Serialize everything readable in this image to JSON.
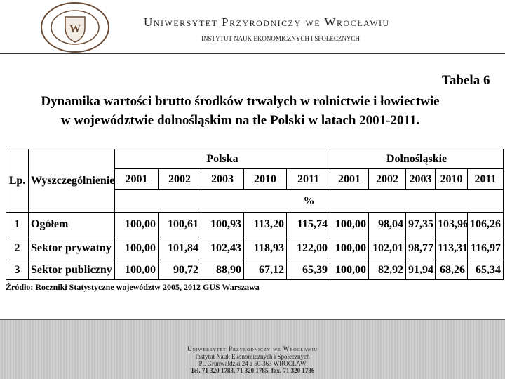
{
  "header": {
    "title": "Uniwersytet Przyrodniczy we Wrocławiu",
    "subtitle": "INSTYTUT NAUK EKONOMICZNYCH I SPOŁECZNYCH"
  },
  "table_label": "Tabela 6",
  "title_lines": [
    "Dynamika wartości brutto środków trwałych w rolnictwie i łowiectwie",
    "w województwie dolnośląskim na tle Polski w latach 2001-2011."
  ],
  "table": {
    "lp": "Lp.",
    "item": "Wyszczególnienie",
    "groups": [
      "Polska",
      "Dolnośląskie"
    ],
    "years": [
      "2001",
      "2002",
      "2003",
      "2010",
      "2011",
      "2001",
      "2002",
      "2003",
      "2010",
      "2011"
    ],
    "unit": "%",
    "rows": [
      [
        "1",
        "Ogółem",
        "100,00",
        "100,61",
        "100,93",
        "113,20",
        "115,74",
        "100,00",
        "98,04",
        "97,35",
        "103,96",
        "106,26"
      ],
      [
        "2",
        "Sektor prywatny",
        "100,00",
        "101,84",
        "102,43",
        "118,93",
        "122,00",
        "100,00",
        "102,01",
        "98,77",
        "113,31",
        "116,97"
      ],
      [
        "3",
        "Sektor publiczny",
        "100,00",
        "90,72",
        "88,90",
        "67,12",
        "65,39",
        "100,00",
        "82,92",
        "91,94",
        "68,26",
        "65,34"
      ]
    ]
  },
  "source": "Źródło: Roczniki Statystyczne województw 2005, 2012 GUS Warszawa",
  "footer": {
    "lines": [
      "Uniwersytet Przyrodniczy we Wrocławiu",
      "Instytut Nauk Ekonomicznych i Społecznych",
      "Pl. Grunwaldzki 24 a 50-363 WROCŁAW",
      "Tel. 71 320 1783, 71 320 1785, fax. 71 320 1786"
    ]
  }
}
